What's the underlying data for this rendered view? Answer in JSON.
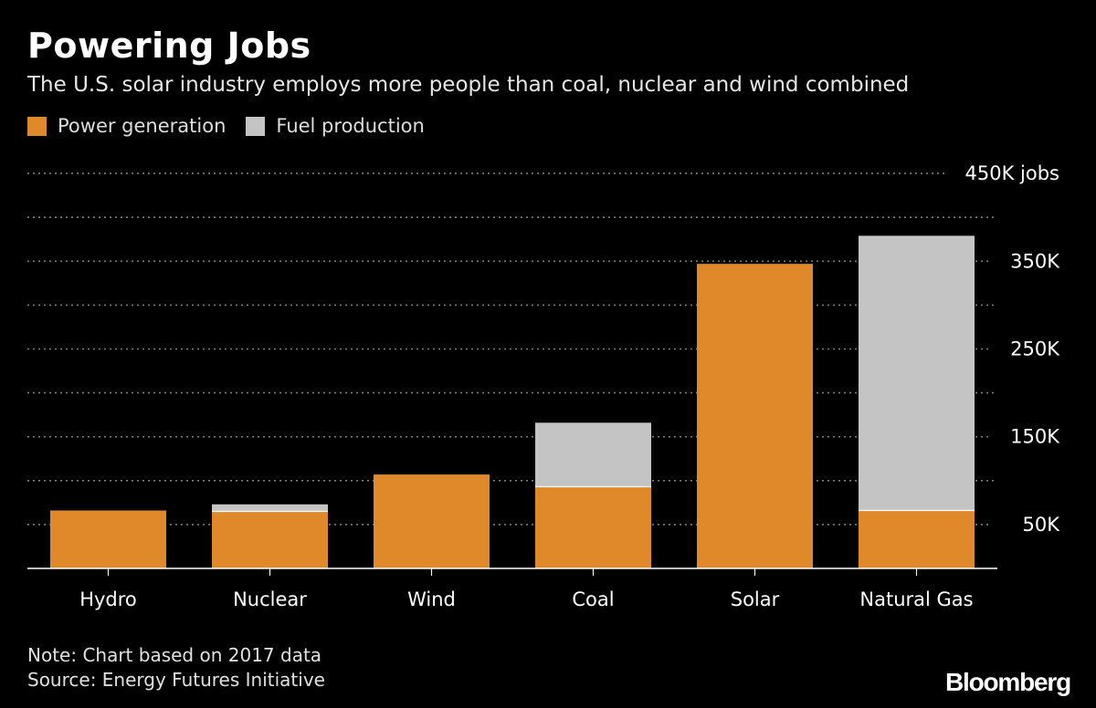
{
  "title": "Powering Jobs",
  "subtitle": "The U.S. solar industry employs more people than coal, nuclear and wind combined",
  "legend": [
    {
      "label": "Power generation",
      "color": "#E0892A"
    },
    {
      "label": "Fuel production",
      "color": "#C4C4C4"
    }
  ],
  "footnote": {
    "note": "Note: Chart based on 2017 data",
    "source": "Source: Energy Futures Initiative"
  },
  "logo": "Bloomberg",
  "chart_data": {
    "type": "bar",
    "stacked": true,
    "categories": [
      "Hydro",
      "Nuclear",
      "Wind",
      "Coal",
      "Solar",
      "Natural Gas"
    ],
    "series": [
      {
        "name": "Power generation",
        "color": "#E0892A",
        "values": [
          66000,
          65000,
          107000,
          93000,
          347000,
          66000
        ]
      },
      {
        "name": "Fuel production",
        "color": "#C4C4C4",
        "values": [
          0,
          8000,
          0,
          73000,
          0,
          313000
        ]
      }
    ],
    "ylim": [
      0,
      450000
    ],
    "ytick_labels": [
      {
        "value": 450000,
        "label": "450K jobs"
      },
      {
        "value": 350000,
        "label": "350K"
      },
      {
        "value": 250000,
        "label": "250K"
      },
      {
        "value": 150000,
        "label": "150K"
      },
      {
        "value": 50000,
        "label": "50K"
      }
    ],
    "grid_values": [
      50000,
      100000,
      150000,
      200000,
      250000,
      300000,
      350000,
      400000,
      450000
    ],
    "grid": true,
    "legend_position": "top-left"
  }
}
